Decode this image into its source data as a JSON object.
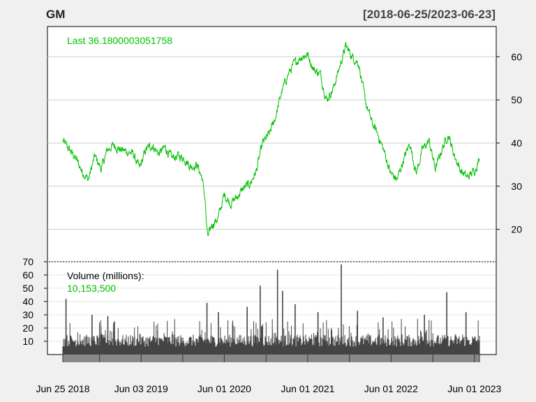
{
  "chart_data": {
    "type": "line",
    "title": "GM",
    "period": "[2018-06-25/2023-06-23]",
    "date_range": [
      "2018-06-25",
      "2023-06-23"
    ],
    "colors": {
      "background": "#f0f0f0",
      "panel": "#ffffff",
      "price_line": "#00c000",
      "volume_bars": "#444444",
      "grid": "#cccccc",
      "time_bar": "#888888"
    },
    "price_panel": {
      "legend_label": "Last 36.1800003051758",
      "ylim": [
        12.5,
        67
      ],
      "y_ticks": [
        20,
        30,
        40,
        50,
        60
      ],
      "axis_side": "right",
      "series": [
        {
          "x": [
            "2018-06-25",
            "2018-07-23",
            "2018-08-20",
            "2018-09-17",
            "2018-10-15",
            "2018-11-12",
            "2018-12-10",
            "2019-01-07",
            "2019-02-04",
            "2019-03-04",
            "2019-04-01",
            "2019-04-29",
            "2019-05-27",
            "2019-06-24",
            "2019-07-22",
            "2019-08-19",
            "2019-09-16",
            "2019-10-14",
            "2019-11-11",
            "2019-12-09",
            "2020-01-06",
            "2020-02-03",
            "2020-02-24",
            "2020-03-09",
            "2020-03-16",
            "2020-03-23",
            "2020-04-06",
            "2020-05-04",
            "2020-06-01",
            "2020-06-29",
            "2020-07-27",
            "2020-08-24",
            "2020-09-21",
            "2020-10-19",
            "2020-11-16",
            "2020-12-14",
            "2021-01-11",
            "2021-02-08",
            "2021-03-08",
            "2021-04-05",
            "2021-05-03",
            "2021-06-01",
            "2021-06-28",
            "2021-07-26",
            "2021-08-23",
            "2021-09-20",
            "2021-10-18",
            "2021-11-15",
            "2021-12-13",
            "2022-01-10",
            "2022-02-07",
            "2022-03-07",
            "2022-04-04",
            "2022-05-02",
            "2022-05-30",
            "2022-06-27",
            "2022-07-25",
            "2022-08-22",
            "2022-09-19",
            "2022-10-17",
            "2022-11-14",
            "2022-12-12",
            "2023-01-09",
            "2023-02-06",
            "2023-03-06",
            "2023-04-03",
            "2023-05-01",
            "2023-05-29",
            "2023-06-23"
          ],
          "y": [
            40.5,
            38.5,
            36.5,
            33.5,
            31.5,
            37.0,
            34.0,
            38.5,
            39.5,
            38.5,
            38.0,
            37.5,
            34.0,
            38.5,
            39.5,
            37.5,
            39.0,
            36.5,
            37.0,
            36.5,
            34.5,
            35.0,
            32.0,
            27.0,
            20.0,
            18.0,
            21.0,
            22.5,
            28.0,
            26.0,
            27.5,
            29.5,
            30.5,
            33.5,
            40.0,
            42.0,
            46.0,
            52.0,
            56.0,
            58.5,
            60.0,
            60.5,
            57.0,
            56.0,
            50.0,
            52.5,
            57.5,
            62.5,
            60.0,
            58.5,
            50.0,
            45.0,
            42.0,
            38.0,
            33.0,
            31.5,
            36.0,
            40.0,
            33.0,
            38.5,
            40.5,
            34.0,
            38.5,
            42.0,
            37.0,
            33.5,
            32.0,
            33.5,
            36.18
          ]
        }
      ]
    },
    "volume_panel": {
      "legend_label": "Volume (millions):",
      "legend_value": "10,153,500",
      "ylim": [
        0,
        70
      ],
      "y_ticks": [
        10,
        20,
        30,
        40,
        50,
        60,
        70
      ],
      "axis_side": "left",
      "typical_volume_millions": 10,
      "spikes": [
        {
          "x": "2018-07-09",
          "value": 42
        },
        {
          "x": "2018-10-31",
          "value": 30
        },
        {
          "x": "2019-01-08",
          "value": 29
        },
        {
          "x": "2019-02-06",
          "value": 25
        },
        {
          "x": "2020-03-17",
          "value": 39
        },
        {
          "x": "2020-05-06",
          "value": 32
        },
        {
          "x": "2020-09-09",
          "value": 36
        },
        {
          "x": "2020-11-05",
          "value": 52
        },
        {
          "x": "2021-01-20",
          "value": 64
        },
        {
          "x": "2021-02-11",
          "value": 48
        },
        {
          "x": "2021-04-07",
          "value": 38
        },
        {
          "x": "2021-07-16",
          "value": 32
        },
        {
          "x": "2021-10-26",
          "value": 68
        },
        {
          "x": "2022-01-05",
          "value": 33
        },
        {
          "x": "2022-04-27",
          "value": 28
        },
        {
          "x": "2022-10-25",
          "value": 30
        },
        {
          "x": "2023-01-31",
          "value": 47
        },
        {
          "x": "2023-04-25",
          "value": 32
        }
      ]
    },
    "x_axis": {
      "tick_labels": [
        {
          "date": "2018-06-25",
          "label": "Jun 25 2018"
        },
        {
          "date": "2019-06-03",
          "label": "Jun 03 2019"
        },
        {
          "date": "2020-06-01",
          "label": "Jun 01 2020"
        },
        {
          "date": "2021-06-01",
          "label": "Jun 01 2021"
        },
        {
          "date": "2022-06-01",
          "label": "Jun 01 2022"
        },
        {
          "date": "2023-06-01",
          "label": "Jun 01 2023"
        }
      ],
      "minor_ticks": [
        "2018-06-25",
        "2018-12-03",
        "2019-06-03",
        "2019-12-02",
        "2020-06-01",
        "2020-12-01",
        "2021-06-01",
        "2021-12-01",
        "2022-06-01",
        "2022-12-01",
        "2023-06-01",
        "2023-06-23"
      ]
    }
  }
}
